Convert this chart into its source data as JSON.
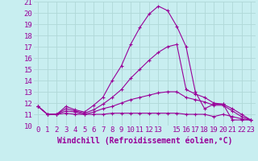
{
  "xlabel": "Windchill (Refroidissement éolien,°C)",
  "background_color": "#c8eef0",
  "grid_color": "#aadddd",
  "line_color": "#990099",
  "hours": [
    0,
    1,
    2,
    3,
    4,
    5,
    6,
    7,
    8,
    9,
    10,
    11,
    12,
    13,
    14,
    15,
    16,
    17,
    18,
    19,
    20,
    21,
    22,
    23
  ],
  "line1": [
    11.7,
    11.0,
    11.0,
    11.7,
    11.4,
    11.2,
    11.8,
    12.5,
    14.0,
    15.3,
    17.2,
    18.7,
    19.9,
    20.6,
    20.2,
    18.8,
    17.0,
    13.0,
    11.5,
    11.9,
    11.9,
    10.5,
    10.5,
    10.5
  ],
  "line2": [
    11.7,
    11.0,
    11.0,
    11.5,
    11.3,
    11.1,
    11.4,
    11.9,
    12.5,
    13.2,
    14.2,
    15.0,
    15.8,
    16.5,
    17.0,
    17.2,
    13.2,
    12.8,
    12.5,
    12.0,
    11.9,
    11.5,
    11.0,
    10.5
  ],
  "line3": [
    11.7,
    11.0,
    11.0,
    11.3,
    11.2,
    11.0,
    11.2,
    11.5,
    11.7,
    12.0,
    12.3,
    12.5,
    12.7,
    12.9,
    13.0,
    13.0,
    12.5,
    12.3,
    12.1,
    11.8,
    11.8,
    11.3,
    10.8,
    10.5
  ],
  "line4": [
    11.7,
    11.0,
    11.0,
    11.1,
    11.0,
    11.0,
    11.0,
    11.0,
    11.1,
    11.1,
    11.1,
    11.1,
    11.1,
    11.1,
    11.1,
    11.1,
    11.0,
    11.0,
    11.0,
    10.8,
    11.0,
    10.8,
    10.6,
    10.5
  ],
  "ylim": [
    10,
    21
  ],
  "ytick_vals": [
    10,
    11,
    12,
    13,
    14,
    15,
    16,
    17,
    18,
    19,
    20,
    21
  ],
  "xtick_positions": [
    0,
    1,
    2,
    3,
    4,
    5,
    6,
    7,
    8,
    9,
    10,
    11,
    12,
    13,
    14,
    15,
    16,
    17,
    18,
    19,
    20,
    21,
    22,
    23
  ],
  "xtick_labels": [
    "0",
    "1",
    "2",
    "3",
    "4",
    "5",
    "6",
    "7",
    "8",
    "9",
    "10",
    "11",
    "12",
    "13",
    " ",
    "15",
    "16",
    "17",
    "18",
    "19",
    "20",
    "21",
    "22",
    "23"
  ],
  "tick_fontsize": 6.5,
  "label_fontsize": 7
}
